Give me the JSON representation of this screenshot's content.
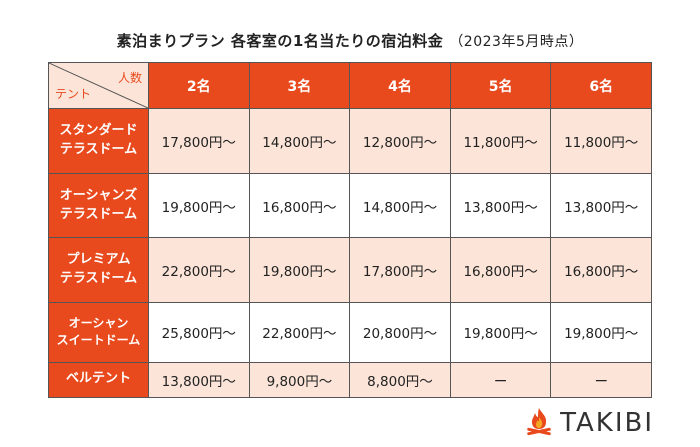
{
  "title": {
    "main": "素泊まりプラン 各客室の1名当たりの宿泊料金",
    "note": "（2023年5月時点）"
  },
  "table": {
    "corner_top": "人数",
    "corner_bottom": "テント",
    "columns": [
      "2名",
      "3名",
      "4名",
      "5名",
      "6名"
    ],
    "rows": [
      {
        "name_line1": "スタンダード",
        "name_line2": "テラスドーム",
        "prices": [
          "17,800円〜",
          "14,800円〜",
          "12,800円〜",
          "11,800円〜",
          "11,800円〜"
        ]
      },
      {
        "name_line1": "オーシャンズ",
        "name_line2": "テラスドーム",
        "prices": [
          "19,800円〜",
          "16,800円〜",
          "14,800円〜",
          "13,800円〜",
          "13,800円〜"
        ]
      },
      {
        "name_line1": "プレミアム",
        "name_line2": "テラスドーム",
        "prices": [
          "22,800円〜",
          "19,800円〜",
          "17,800円〜",
          "16,800円〜",
          "16,800円〜"
        ]
      },
      {
        "name_line1": "オーシャン",
        "name_line2": "スイートドーム",
        "prices": [
          "25,800円〜",
          "22,800円〜",
          "20,800円〜",
          "19,800円〜",
          "19,800円〜"
        ]
      },
      {
        "name_line1": "ベルテント",
        "name_line2": "",
        "prices": [
          "13,800円〜",
          "9,800円〜",
          "8,800円〜",
          "ー",
          "ー"
        ]
      }
    ]
  },
  "logo": {
    "text": "TAKIBI",
    "icon": "campfire-icon",
    "accent": "#e8491d"
  },
  "colors": {
    "header": "#e8491d",
    "light_row": "#fce5d8"
  }
}
